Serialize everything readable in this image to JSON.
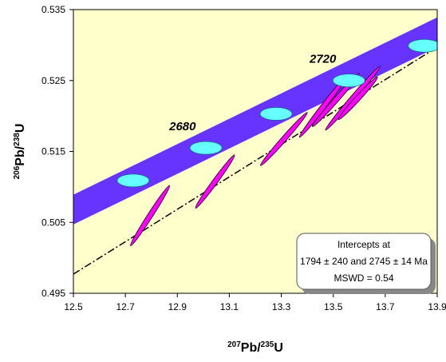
{
  "chart_data": {
    "type": "scatter",
    "title": "",
    "xlabel": {
      "pre_sup": "207",
      "main": "Pb/",
      "sup": "235",
      "post": "U"
    },
    "ylabel": {
      "pre_sup": "206",
      "main": "Pb/",
      "sup": "238",
      "post": "U"
    },
    "xlim": [
      12.5,
      13.9
    ],
    "ylim": [
      0.495,
      0.535
    ],
    "x_ticks": [
      "12.5",
      "12.7",
      "12.9",
      "13.1",
      "13.3",
      "13.5",
      "13.7",
      "13.9"
    ],
    "y_ticks": [
      "0.495",
      "0.505",
      "0.515",
      "0.525",
      "0.535"
    ],
    "grid": false,
    "colors": {
      "plot_background": "#ffffcc",
      "concordia_band": "#6633ff",
      "age_markers": "#66ffff",
      "error_ellipses": "#ff00ff",
      "discordia_line": "#000000"
    },
    "concordia_band": {
      "x": [
        12.5,
        13.9
      ],
      "y": [
        0.5068,
        0.5318
      ],
      "half_width_y": 0.0021
    },
    "concordia_age_markers": [
      {
        "x": 12.73,
        "y": 0.5109
      },
      {
        "x": 13.01,
        "y": 0.5155
      },
      {
        "x": 13.28,
        "y": 0.5203
      },
      {
        "x": 13.56,
        "y": 0.525
      },
      {
        "x": 13.85,
        "y": 0.5299
      }
    ],
    "age_labels": [
      {
        "text": "2680",
        "x": 12.92,
        "y": 0.518
      },
      {
        "text": "2720",
        "x": 13.46,
        "y": 0.5275
      }
    ],
    "discordia_line": {
      "style": "dash-dot",
      "x": [
        12.5,
        13.9
      ],
      "y": [
        0.4977,
        0.5297
      ]
    },
    "error_ellipses": [
      {
        "x1": 12.72,
        "y1": 0.5017,
        "x2": 12.87,
        "y2": 0.5102
      },
      {
        "x1": 12.97,
        "y1": 0.507,
        "x2": 13.12,
        "y2": 0.5145
      },
      {
        "x1": 13.22,
        "y1": 0.513,
        "x2": 13.4,
        "y2": 0.5205
      },
      {
        "x1": 13.37,
        "y1": 0.517,
        "x2": 13.55,
        "y2": 0.5255
      },
      {
        "x1": 13.42,
        "y1": 0.5185,
        "x2": 13.6,
        "y2": 0.526
      },
      {
        "x1": 13.47,
        "y1": 0.518,
        "x2": 13.68,
        "y2": 0.527
      },
      {
        "x1": 13.52,
        "y1": 0.5195,
        "x2": 13.67,
        "y2": 0.5255
      }
    ],
    "annotation": {
      "line1": "Intercepts at",
      "line2": "1794 ± 240 and 2745 ± 14 Ma",
      "line3": "MSWD = 0.54",
      "position": "bottom-right"
    }
  }
}
